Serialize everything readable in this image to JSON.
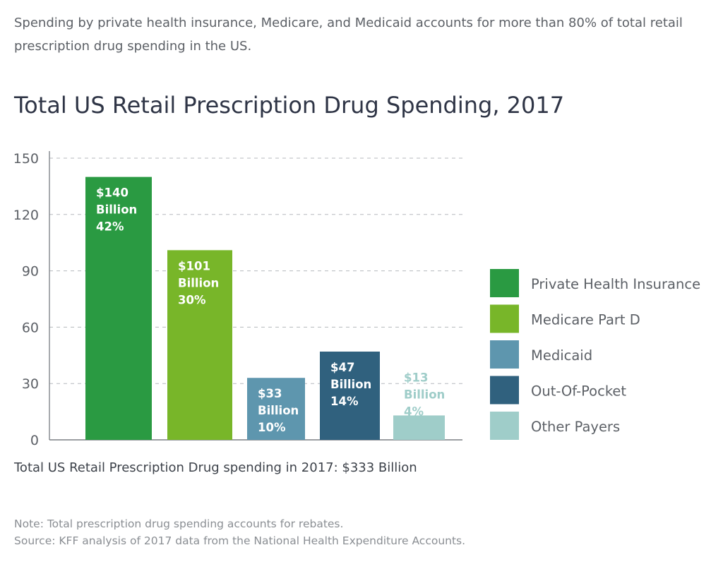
{
  "intro": "Spending by private health insurance, Medicare, and Medicaid accounts for more than 80% of total retail prescription drug spending in the US.",
  "chart_data": {
    "type": "bar",
    "title": "Total US Retail Prescription Drug Spending, 2017",
    "xlabel": "",
    "ylabel": "",
    "ylim": [
      0,
      150
    ],
    "yticks": [
      0,
      30,
      60,
      90,
      120,
      150
    ],
    "grid": true,
    "legend_placement": "right",
    "categories": [
      "Private Health Insurance",
      "Medicare Part D",
      "Medicaid",
      "Out-Of-Pocket",
      "Other Payers"
    ],
    "values": [
      140,
      101,
      33,
      47,
      13
    ],
    "colors": [
      "#2a9a42",
      "#78b629",
      "#5e96ae",
      "#30617e",
      "#9fcdc9"
    ],
    "data_labels": [
      [
        "$140",
        "Billion",
        "42%"
      ],
      [
        "$101",
        "Billion",
        "30%"
      ],
      [
        "$33",
        "Billion",
        "10%"
      ],
      [
        "$47",
        "Billion",
        "14%"
      ],
      [
        "$13",
        "Billion",
        "4%"
      ]
    ]
  },
  "total_note": "Total US Retail Prescription Drug spending in 2017: $333 Billion",
  "note": "Note: Total prescription drug spending accounts for rebates.",
  "source": "Source: KFF analysis of 2017 data from the National Health Expenditure Accounts."
}
